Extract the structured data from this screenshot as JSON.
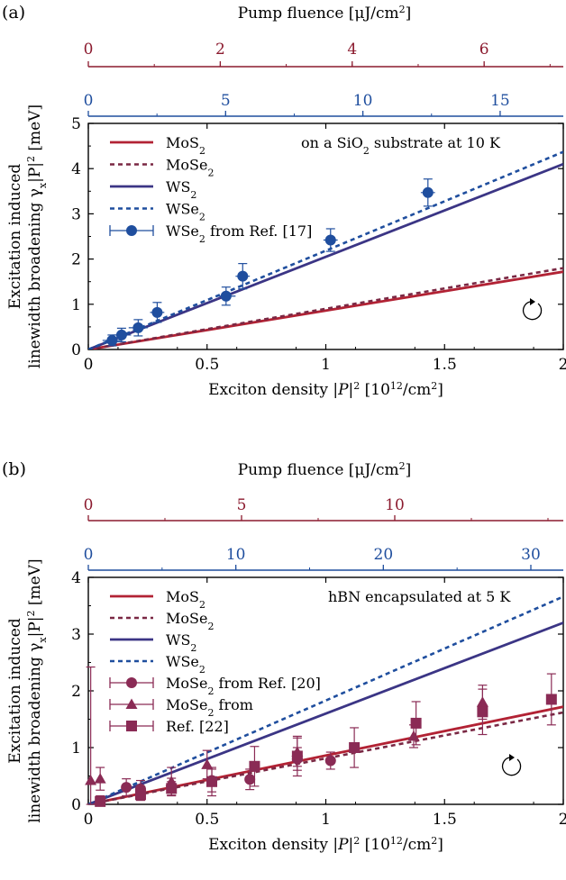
{
  "colors": {
    "mos2": "#b22234",
    "mose2": "#7a2844",
    "ws2": "#3b3585",
    "wse2": "#1f4e9e",
    "exp": "#8a2b55",
    "wse2_exp": "#1f4e9e",
    "fluence_axis": "#8b1a2e",
    "density_axis": "#1f4e9e"
  },
  "chart_data": [
    {
      "type": "line",
      "panel": "(a)",
      "annotation": {
        "pre": "on a SiO",
        "sub": "2",
        "post": " substrate at 10 K"
      },
      "xlabel": {
        "pre": "Exciton density |",
        "it": "P",
        "post": "|",
        "sup": "2",
        "post2": " [10",
        "sup2": "12",
        "post3": "/cm",
        "sup3": "2",
        "post4": "]"
      },
      "ylabel": {
        "line1": "Excitation induced",
        "line2": "linewidth broadening γ",
        "sub": "x",
        "line2b": "|P|",
        "sup": "2",
        "line2c": " [meV]"
      },
      "top_axis_label": {
        "pre": "Pump fluence [μJ/cm",
        "sup": "2",
        "post": "]"
      },
      "xlim": [
        0,
        2
      ],
      "ylim": [
        0,
        5
      ],
      "xticks": [
        "0",
        "0.5",
        "1",
        "1.5",
        "2"
      ],
      "yticks": [
        "0",
        "1",
        "2",
        "3",
        "4",
        "5"
      ],
      "fluence_axis": {
        "max": 7.2,
        "ticks": [
          0,
          2,
          4,
          6
        ],
        "tick_labels": [
          "0",
          "2",
          "4",
          "6"
        ]
      },
      "density_axis": {
        "max": 17.3,
        "ticks": [
          0,
          5,
          10,
          15
        ],
        "tick_labels": [
          "0",
          "5",
          "10",
          "15"
        ]
      },
      "series": [
        {
          "name": "MoS2",
          "key": "mos2",
          "style": "solid",
          "x": [
            0,
            2
          ],
          "y": [
            0,
            1.72
          ]
        },
        {
          "name": "MoSe2",
          "key": "mose2",
          "style": "dotted",
          "x": [
            0,
            2
          ],
          "y": [
            0,
            1.8
          ]
        },
        {
          "name": "WS2",
          "key": "ws2",
          "style": "solid",
          "x": [
            0,
            2
          ],
          "y": [
            0,
            4.1
          ]
        },
        {
          "name": "WSe2",
          "key": "wse2",
          "style": "dotted",
          "x": [
            0,
            2
          ],
          "y": [
            0,
            4.37
          ]
        }
      ],
      "experiments": [
        {
          "name": "WSe2 from Ref. [17]",
          "key": "wse2_exp",
          "marker": "circle",
          "points": [
            {
              "x": 0.1,
              "y": 0.2,
              "yerr": 0.12,
              "xerr": 0.04
            },
            {
              "x": 0.14,
              "y": 0.32,
              "yerr": 0.15,
              "xerr": 0.04
            },
            {
              "x": 0.21,
              "y": 0.48,
              "yerr": 0.18,
              "xerr": 0.04
            },
            {
              "x": 0.29,
              "y": 0.82,
              "yerr": 0.22,
              "xerr": 0.03
            },
            {
              "x": 0.58,
              "y": 1.18,
              "yerr": 0.2,
              "xerr": 0.04
            },
            {
              "x": 0.65,
              "y": 1.62,
              "yerr": 0.28,
              "xerr": 0.03
            },
            {
              "x": 1.02,
              "y": 2.42,
              "yerr": 0.25,
              "xerr": 0.03
            },
            {
              "x": 1.43,
              "y": 3.47,
              "yerr": 0.3,
              "xerr": 0.03
            }
          ]
        }
      ],
      "legend": [
        {
          "base": "MoS",
          "sub": "2",
          "tail": "",
          "key": "mos2",
          "style": "solid"
        },
        {
          "base": "MoSe",
          "sub": "2",
          "tail": "",
          "key": "mose2",
          "style": "dotted"
        },
        {
          "base": "WS",
          "sub": "2",
          "tail": "",
          "key": "ws2",
          "style": "solid"
        },
        {
          "base": "WSe",
          "sub": "2",
          "tail": "",
          "key": "wse2",
          "style": "dotted"
        },
        {
          "base": "WSe",
          "sub": "2",
          "tail": " from Ref. [17]",
          "key": "wse2_exp",
          "style": "marker",
          "marker": "circle"
        }
      ]
    },
    {
      "type": "line",
      "panel": "(b)",
      "annotation": {
        "pre": "hBN encapsulated at 5 K",
        "sub": "",
        "post": ""
      },
      "xlabel": {
        "pre": "Exciton density |",
        "it": "P",
        "post": "|",
        "sup": "2",
        "post2": " [10",
        "sup2": "12",
        "post3": "/cm",
        "sup3": "2",
        "post4": "]"
      },
      "ylabel": {
        "line1": "Excitation induced",
        "line2": "linewidth broadening γ",
        "sub": "x",
        "line2b": "|P|",
        "sup": "2",
        "line2c": " [meV]"
      },
      "top_axis_label": {
        "pre": "Pump fluence [μJ/cm",
        "sup": "2",
        "post": "]"
      },
      "xlim": [
        0,
        2
      ],
      "ylim": [
        0,
        4
      ],
      "xticks": [
        "0",
        "0.5",
        "1",
        "1.5",
        "2"
      ],
      "yticks": [
        "0",
        "1",
        "2",
        "3",
        "4"
      ],
      "fluence_axis": {
        "max": 15.5,
        "ticks": [
          0,
          5,
          10
        ],
        "tick_labels": [
          "0",
          "5",
          "10"
        ]
      },
      "density_axis": {
        "max": 32.2,
        "ticks": [
          0,
          10,
          20,
          30
        ],
        "tick_labels": [
          "0",
          "10",
          "20",
          "30"
        ]
      },
      "series": [
        {
          "name": "MoS2",
          "key": "mos2",
          "style": "solid",
          "x": [
            0,
            2
          ],
          "y": [
            0,
            1.72
          ]
        },
        {
          "name": "MoSe2",
          "key": "mose2",
          "style": "dotted",
          "x": [
            0,
            2
          ],
          "y": [
            0,
            1.62
          ]
        },
        {
          "name": "WS2",
          "key": "ws2",
          "style": "solid",
          "x": [
            0,
            2
          ],
          "y": [
            0,
            3.2
          ]
        },
        {
          "name": "WSe2",
          "key": "wse2",
          "style": "dotted",
          "x": [
            0,
            2
          ],
          "y": [
            0,
            3.66
          ]
        }
      ],
      "experiments": [
        {
          "name": "MoSe2 from Ref. [20]",
          "key": "exp",
          "marker": "circle",
          "points": [
            {
              "x": 0.16,
              "y": 0.3,
              "yerr": 0.15
            },
            {
              "x": 0.22,
              "y": 0.27,
              "yerr": 0.15
            },
            {
              "x": 0.35,
              "y": 0.31,
              "yerr": 0.15
            },
            {
              "x": 0.52,
              "y": 0.42,
              "yerr": 0.2
            },
            {
              "x": 0.68,
              "y": 0.44,
              "yerr": 0.18
            },
            {
              "x": 0.88,
              "y": 0.8,
              "yerr": 0.2
            },
            {
              "x": 1.02,
              "y": 0.77,
              "yerr": 0.15
            }
          ]
        },
        {
          "name": "MoSe2 from",
          "key": "exp",
          "marker": "triangle",
          "points": [
            {
              "x": 0.01,
              "y": 0.42,
              "yerr": 2.0
            },
            {
              "x": 0.05,
              "y": 0.45,
              "yerr": 0.2
            },
            {
              "x": 0.35,
              "y": 0.4,
              "yerr": 0.25
            },
            {
              "x": 0.5,
              "y": 0.7,
              "yerr": 0.25
            },
            {
              "x": 0.88,
              "y": 0.92,
              "yerr": 0.25
            },
            {
              "x": 1.37,
              "y": 1.2,
              "yerr": 0.2
            },
            {
              "x": 1.66,
              "y": 1.8,
              "yerr": 0.3
            }
          ]
        },
        {
          "name": "Ref. [22]",
          "key": "exp",
          "marker": "square",
          "points": [
            {
              "x": 0.05,
              "y": 0.05,
              "yerr": 0.1
            },
            {
              "x": 0.22,
              "y": 0.17,
              "yerr": 0.1
            },
            {
              "x": 0.35,
              "y": 0.28,
              "yerr": 0.12
            },
            {
              "x": 0.52,
              "y": 0.4,
              "yerr": 0.25
            },
            {
              "x": 0.7,
              "y": 0.67,
              "yerr": 0.35
            },
            {
              "x": 0.88,
              "y": 0.85,
              "yerr": 0.35
            },
            {
              "x": 1.12,
              "y": 1.0,
              "yerr": 0.35
            },
            {
              "x": 1.38,
              "y": 1.43,
              "yerr": 0.38
            },
            {
              "x": 1.66,
              "y": 1.63,
              "yerr": 0.4
            },
            {
              "x": 1.95,
              "y": 1.85,
              "yerr": 0.45
            }
          ]
        }
      ],
      "legend": [
        {
          "base": "MoS",
          "sub": "2",
          "tail": "",
          "key": "mos2",
          "style": "solid"
        },
        {
          "base": "MoSe",
          "sub": "2",
          "tail": "",
          "key": "mose2",
          "style": "dotted"
        },
        {
          "base": "WS",
          "sub": "2",
          "tail": "",
          "key": "ws2",
          "style": "solid"
        },
        {
          "base": "WSe",
          "sub": "2",
          "tail": "",
          "key": "wse2",
          "style": "dotted"
        },
        {
          "base": "MoSe",
          "sub": "2",
          "tail": " from Ref. [20]",
          "key": "exp",
          "style": "marker",
          "marker": "circle"
        },
        {
          "base": "MoSe",
          "sub": "2",
          "tail": " from",
          "key": "exp",
          "style": "marker",
          "marker": "triangle"
        },
        {
          "base": "Ref. [22]",
          "sub": "",
          "tail": "",
          "key": "exp",
          "style": "marker",
          "marker": "square"
        }
      ]
    }
  ]
}
